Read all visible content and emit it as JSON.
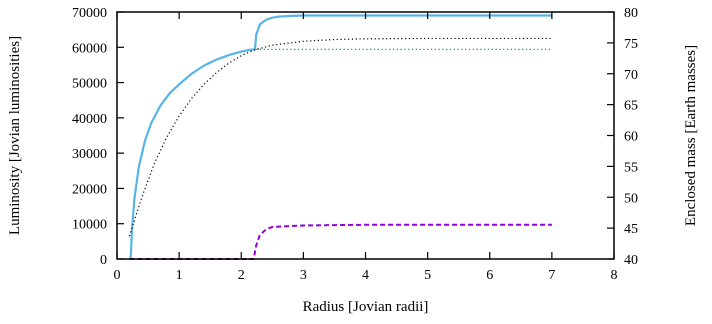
{
  "chart_data": {
    "type": "line",
    "xlabel": "Radius [Jovian radii]",
    "ylabel": "Luminosity [Jovian luminosities]",
    "y2label": "Enclosed mass [Earth masses]",
    "xlim": [
      0,
      8
    ],
    "ylim": [
      0,
      70000
    ],
    "y2lim": [
      40,
      80
    ],
    "x_ticks": [
      "0",
      "1",
      "2",
      "3",
      "4",
      "5",
      "6",
      "7",
      "8"
    ],
    "y_ticks": [
      "0",
      "10000",
      "20000",
      "30000",
      "40000",
      "50000",
      "60000",
      "70000"
    ],
    "y2_ticks": [
      "40",
      "45",
      "50",
      "55",
      "60",
      "65",
      "70",
      "75",
      "80"
    ],
    "grid": false,
    "series": [
      {
        "axis": "left",
        "style": "solid",
        "color": "#56b4e9",
        "x": [
          0.22,
          0.24,
          0.28,
          0.35,
          0.45,
          0.55,
          0.7,
          0.85,
          1.0,
          1.2,
          1.4,
          1.6,
          1.8,
          2.0,
          2.15,
          2.22,
          2.24,
          2.3,
          2.4,
          2.5,
          2.6,
          2.8,
          3.0,
          4.0,
          5.0,
          6.0,
          7.0
        ],
        "y": [
          0,
          8000,
          17000,
          26000,
          33500,
          38500,
          43500,
          47000,
          49500,
          52500,
          54800,
          56500,
          57800,
          58800,
          59300,
          59400,
          63500,
          66500,
          67800,
          68400,
          68700,
          68900,
          69000,
          69000,
          69000,
          69000,
          69000
        ]
      },
      {
        "axis": "left",
        "style": "dotted",
        "color": "#000000",
        "x": [
          0.2,
          0.4,
          0.6,
          0.8,
          1.0,
          1.2,
          1.4,
          1.6,
          1.8,
          2.0,
          2.2,
          2.5,
          3.0,
          3.5,
          4.0,
          5.0,
          6.0,
          7.0
        ],
        "y": [
          6500,
          17500,
          27000,
          34500,
          40500,
          45500,
          49500,
          52800,
          55500,
          57600,
          59200,
          60600,
          61700,
          62200,
          62400,
          62500,
          62500,
          62500
        ]
      },
      {
        "axis": "left",
        "style": "dotted",
        "color": "#009e73",
        "x": [
          2.24,
          7.0
        ],
        "y": [
          59400,
          59400
        ]
      },
      {
        "axis": "left",
        "style": "dashed",
        "color": "#9400d3",
        "x": [
          0.2,
          2.2,
          2.24,
          2.3,
          2.4,
          2.5,
          3.0,
          4.0,
          5.0,
          6.0,
          7.0
        ],
        "y": [
          0,
          0,
          3800,
          6800,
          8400,
          9100,
          9500,
          9700,
          9700,
          9700,
          9700
        ]
      }
    ]
  }
}
